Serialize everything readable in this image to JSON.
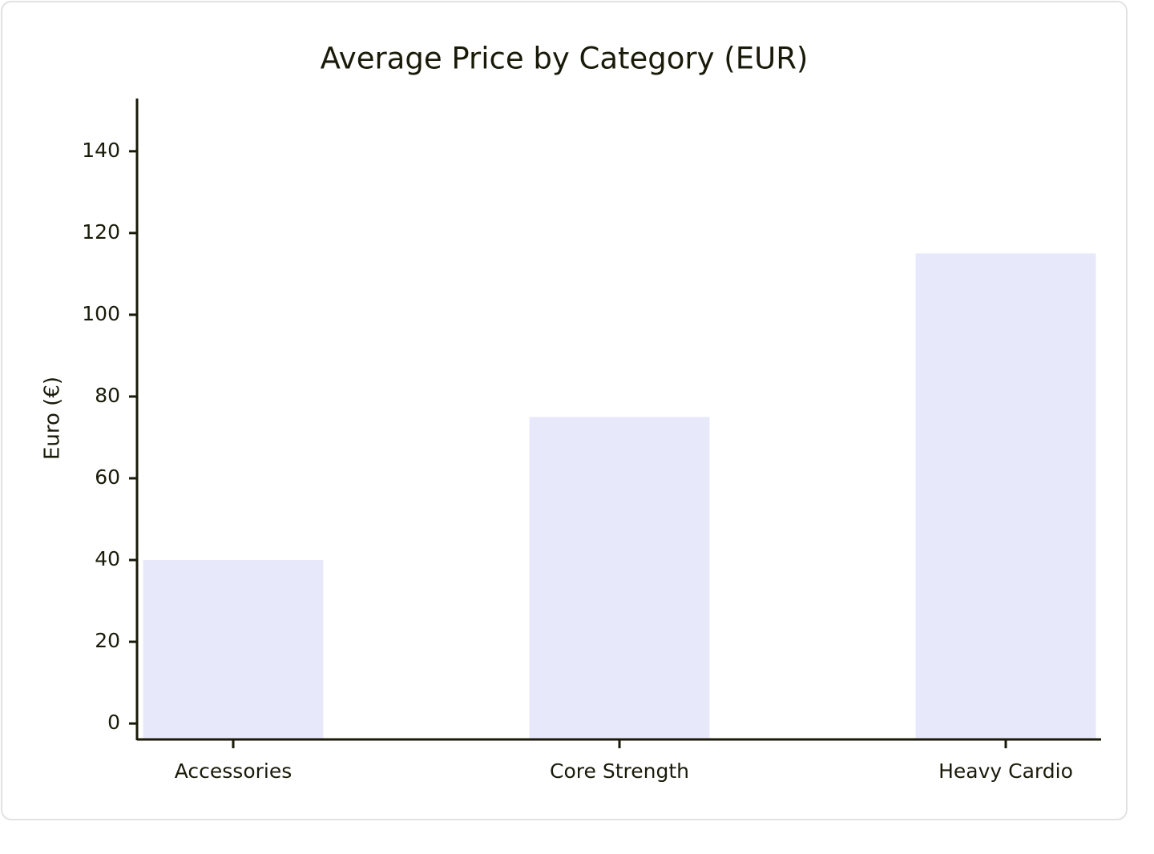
{
  "chart_data": {
    "type": "bar",
    "title": "Average Price by Category (EUR)",
    "y_label": "Euro (€)",
    "categories": [
      "Accessories",
      "Core Strength",
      "Heavy Cardio"
    ],
    "values": [
      40,
      75,
      115
    ],
    "color": "#e8e8fb",
    "ylim": [
      -3.7,
      152.9
    ],
    "yticks": [
      0,
      20,
      40,
      60,
      80,
      100,
      120,
      140
    ],
    "grid": false
  }
}
